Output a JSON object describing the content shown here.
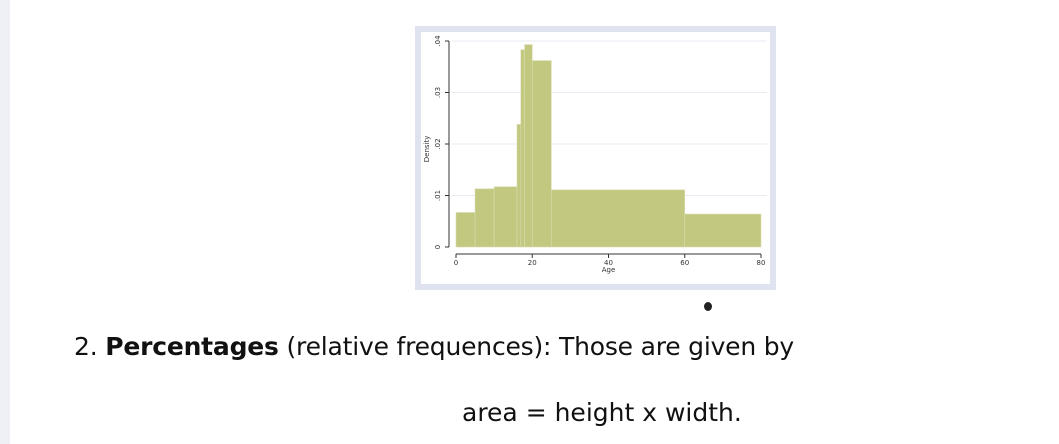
{
  "chart_data": {
    "type": "bar",
    "histogram": true,
    "xlabel": "Age",
    "ylabel": "Density",
    "xlim": [
      0,
      80
    ],
    "ylim": [
      0,
      0.04
    ],
    "xticks": [
      "0",
      "20",
      "40",
      "60",
      "80"
    ],
    "yticks": [
      "0",
      ".01",
      ".02",
      ".03",
      ".04"
    ],
    "bar_color": "#c2c87f",
    "bins": [
      {
        "x0": 0,
        "x1": 5,
        "density": 0.0067
      },
      {
        "x0": 5,
        "x1": 10,
        "density": 0.0113
      },
      {
        "x0": 10,
        "x1": 16,
        "density": 0.0117
      },
      {
        "x0": 16,
        "x1": 17,
        "density": 0.0238
      },
      {
        "x0": 17,
        "x1": 18,
        "density": 0.0383
      },
      {
        "x0": 18,
        "x1": 20,
        "density": 0.0393
      },
      {
        "x0": 20,
        "x1": 25,
        "density": 0.0362
      },
      {
        "x0": 25,
        "x1": 60,
        "density": 0.0111
      },
      {
        "x0": 60,
        "x1": 80,
        "density": 0.0064
      }
    ]
  },
  "text": {
    "item_number": "2.",
    "item_bold": "Percentages",
    "item_rest": " (relative frequences): Those are given by",
    "formula": "area = height x width."
  }
}
